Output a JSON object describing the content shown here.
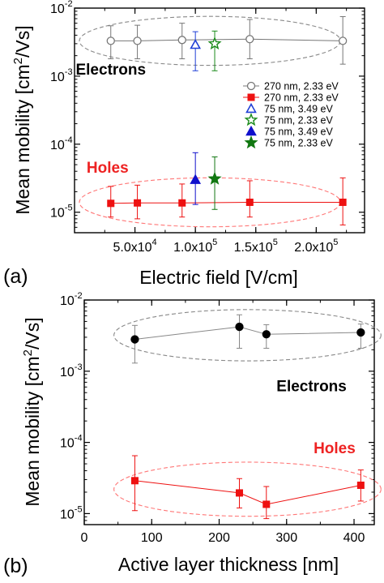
{
  "chart_data": [
    {
      "panel_label": "(a)",
      "type": "scatter",
      "xlabel": "Electric field [V/cm]",
      "ylabel": "Mean mobility [cm²/Vs]",
      "ylabel_parts": {
        "pre": "Mean mobility [cm",
        "sup": "2",
        "post": "/Vs]"
      },
      "xlim": [
        0,
        240000
      ],
      "ylim": [
        5e-06,
        0.01
      ],
      "yscale": "log",
      "x_ticks": [
        {
          "value": 50000,
          "mant": "5.0x10",
          "exp": "4"
        },
        {
          "value": 100000,
          "mant": "1.0x10",
          "exp": "5"
        },
        {
          "value": 150000,
          "mant": "1.5x10",
          "exp": "5"
        },
        {
          "value": 200000,
          "mant": "2.0x10",
          "exp": "5"
        }
      ],
      "y_ticks": [
        {
          "value": 1e-05,
          "mant": "10",
          "exp": "-5"
        },
        {
          "value": 0.0001,
          "mant": "10",
          "exp": "-4"
        },
        {
          "value": 0.001,
          "mant": "10",
          "exp": "-3"
        },
        {
          "value": 0.01,
          "mant": "10",
          "exp": "-2"
        }
      ],
      "annotations": [
        {
          "text": "Electrons",
          "color": "#000000",
          "at": [
            1000,
            0.00105
          ]
        },
        {
          "text": "Holes",
          "color": "#ee2222",
          "at": [
            10000,
            3.8e-05
          ]
        }
      ],
      "groups": [
        {
          "cx": 112000,
          "cy": 0.0033,
          "rx": 108000,
          "ry_dec": 0.36,
          "color": "#888888"
        },
        {
          "cx": 112000,
          "cy": 1.4e-05,
          "rx": 108000,
          "ry_dec": 0.36,
          "color": "#ff7777"
        }
      ],
      "series": [
        {
          "name": "270 nm, 2.33 eV",
          "marker": "circle-open",
          "color": "#777777",
          "connect": true,
          "points": [
            {
              "x": 30000,
              "y": 0.0033,
              "lo": 0.0018,
              "hi": 0.0055
            },
            {
              "x": 52000,
              "y": 0.0033,
              "lo": 0.0018,
              "hi": 0.0056
            },
            {
              "x": 89000,
              "y": 0.0034,
              "lo": 0.0018,
              "hi": 0.006
            },
            {
              "x": 145000,
              "y": 0.0035,
              "lo": 0.0018,
              "hi": 0.0068
            },
            {
              "x": 222000,
              "y": 0.0033,
              "lo": 0.0015,
              "hi": 0.0075
            }
          ]
        },
        {
          "name": "270 nm, 2.33 eV",
          "marker": "square-filled",
          "color": "#ee1111",
          "connect": true,
          "points": [
            {
              "x": 30000,
              "y": 1.35e-05,
              "lo": 8.5e-06,
              "hi": 2.4e-05
            },
            {
              "x": 52000,
              "y": 1.37e-05,
              "lo": 8e-06,
              "hi": 2.5e-05
            },
            {
              "x": 89000,
              "y": 1.37e-05,
              "lo": 8.5e-06,
              "hi": 2.6e-05
            },
            {
              "x": 145000,
              "y": 1.4e-05,
              "lo": 8.5e-06,
              "hi": 2.9e-05
            },
            {
              "x": 222000,
              "y": 1.4e-05,
              "lo": 6.5e-06,
              "hi": 3.2e-05
            }
          ]
        },
        {
          "name": "75 nm, 3.49 eV",
          "marker": "triangle-open",
          "color": "#1f3fd6",
          "connect": false,
          "points": [
            {
              "x": 100000,
              "y": 0.0029,
              "lo": 0.0012,
              "hi": 0.0045
            }
          ]
        },
        {
          "name": "75 nm, 2.33 eV",
          "marker": "star-open",
          "color": "#1a8a1a",
          "connect": false,
          "points": [
            {
              "x": 116000,
              "y": 0.003,
              "lo": 0.0012,
              "hi": 0.0046
            }
          ]
        },
        {
          "name": "75 nm, 3.49 eV",
          "marker": "triangle-filled",
          "color": "#1010cc",
          "connect": false,
          "points": [
            {
              "x": 100000,
              "y": 3e-05,
              "lo": 1.3e-05,
              "hi": 7.5e-05
            }
          ]
        },
        {
          "name": "75 nm, 2.33 eV",
          "marker": "star-filled",
          "color": "#117711",
          "connect": false,
          "points": [
            {
              "x": 116000,
              "y": 3.1e-05,
              "lo": 1.1e-05,
              "hi": 6.5e-05
            }
          ]
        }
      ],
      "legend": {
        "placement": "right, middle"
      }
    },
    {
      "panel_label": "(b)",
      "type": "scatter",
      "xlabel": "Active layer thickness [nm]",
      "ylabel": "Mean mobility [cm²/Vs]",
      "ylabel_parts": {
        "pre": "Mean mobility [cm",
        "sup": "2",
        "post": "/Vs]"
      },
      "xlim": [
        0,
        430
      ],
      "ylim": [
        7e-06,
        0.01
      ],
      "yscale": "log",
      "x_ticks": [
        {
          "value": 0,
          "mant": "0",
          "exp": ""
        },
        {
          "value": 100,
          "mant": "100",
          "exp": ""
        },
        {
          "value": 200,
          "mant": "200",
          "exp": ""
        },
        {
          "value": 300,
          "mant": "300",
          "exp": ""
        },
        {
          "value": 400,
          "mant": "400",
          "exp": ""
        }
      ],
      "y_ticks": [
        {
          "value": 1e-05,
          "mant": "10",
          "exp": "-5"
        },
        {
          "value": 0.0001,
          "mant": "10",
          "exp": "-4"
        },
        {
          "value": 0.001,
          "mant": "10",
          "exp": "-3"
        },
        {
          "value": 0.01,
          "mant": "10",
          "exp": "-2"
        }
      ],
      "annotations": [
        {
          "text": "Electrons",
          "color": "#000000",
          "at": [
            285,
            0.00052
          ]
        },
        {
          "text": "Holes",
          "color": "#ee2222",
          "at": [
            340,
            7e-05
          ]
        }
      ],
      "groups": [
        {
          "cx": 242,
          "cy": 0.0032,
          "rx": 198,
          "ry_dec": 0.36,
          "color": "#888888"
        },
        {
          "cx": 242,
          "cy": 2.2e-05,
          "rx": 198,
          "ry_dec": 0.38,
          "color": "#ff7777"
        }
      ],
      "series": [
        {
          "name": "Electrons",
          "marker": "circle-filled",
          "color": "#000000",
          "line_color": "#888888",
          "connect": true,
          "points": [
            {
              "x": 75,
              "y": 0.0028,
              "lo": 0.0013,
              "hi": 0.0044
            },
            {
              "x": 230,
              "y": 0.0042,
              "lo": 0.0021,
              "hi": 0.0062
            },
            {
              "x": 270,
              "y": 0.0033,
              "lo": 0.0021,
              "hi": 0.0045
            },
            {
              "x": 410,
              "y": 0.0035,
              "lo": 0.0021,
              "hi": 0.0046
            }
          ]
        },
        {
          "name": "Holes",
          "marker": "square-filled",
          "color": "#ee1111",
          "connect": true,
          "points": [
            {
              "x": 75,
              "y": 2.9e-05,
              "lo": 1.1e-05,
              "hi": 6.5e-05
            },
            {
              "x": 230,
              "y": 1.95e-05,
              "lo": 1.2e-05,
              "hi": 3.1e-05
            },
            {
              "x": 270,
              "y": 1.35e-05,
              "lo": 8.5e-06,
              "hi": 2.4e-05
            },
            {
              "x": 410,
              "y": 2.5e-05,
              "lo": 1.5e-05,
              "hi": 4.1e-05
            }
          ]
        }
      ]
    }
  ]
}
